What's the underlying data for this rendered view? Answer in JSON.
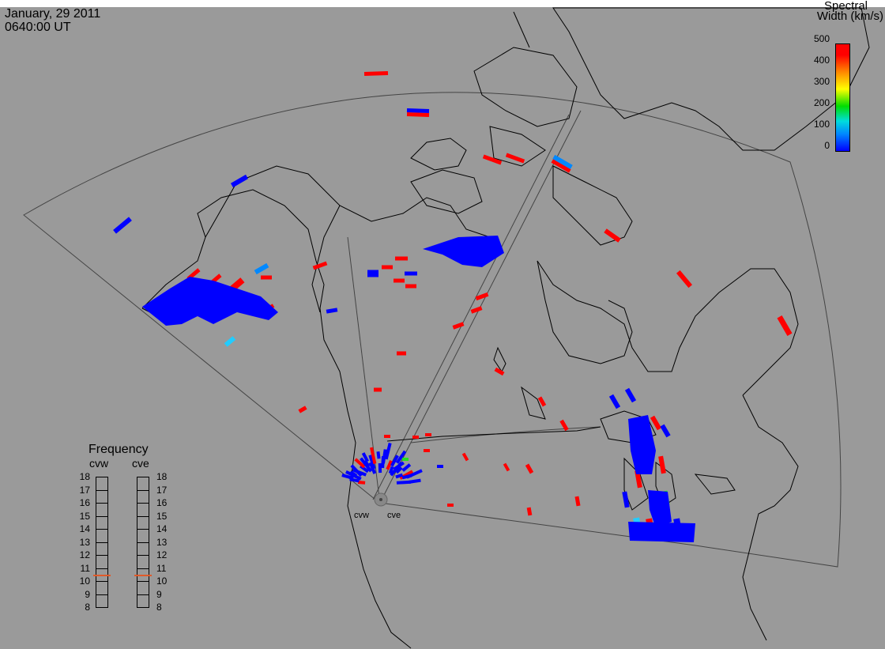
{
  "header": {
    "date": "January, 29 2011",
    "time": "0640:00 UT"
  },
  "colorbar": {
    "title_line1": "Spectral",
    "title_line2": "Width (km/s)",
    "ticks": [
      "500",
      "400",
      "300",
      "200",
      "100",
      "0"
    ],
    "range": [
      0,
      500
    ],
    "colors": [
      "#0000ff",
      "#0088ff",
      "#00dddd",
      "#00dd00",
      "#ffff00",
      "#ff8800",
      "#ff0000"
    ]
  },
  "frequency_panel": {
    "title": "Frequency",
    "radars": [
      {
        "name": "cvw",
        "selected_mhz": 10.5
      },
      {
        "name": "cve",
        "selected_mhz": 10.5
      }
    ],
    "scale": [
      "18",
      "17",
      "16",
      "15",
      "14",
      "13",
      "12",
      "11",
      "10",
      "9",
      "8"
    ],
    "marker_color": "#e05a2a"
  },
  "sites": [
    {
      "code": "cvw"
    },
    {
      "code": "cve"
    }
  ],
  "map": {
    "background": "#9a9a9a",
    "coastline_color": "#000000",
    "fov_color": "#444444"
  }
}
